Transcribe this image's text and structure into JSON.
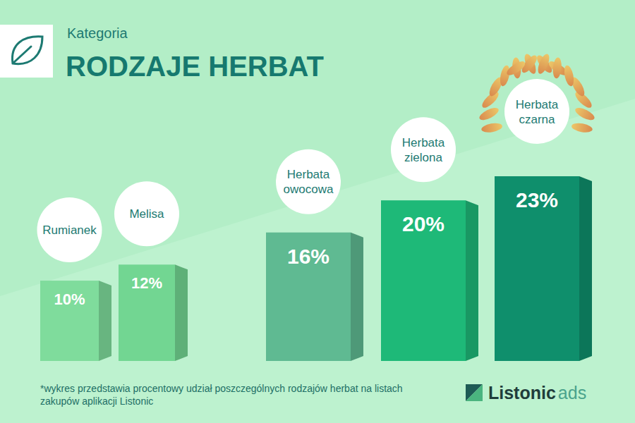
{
  "chart_data": {
    "type": "bar",
    "title": "RODZAJE HERBAT",
    "subtitle": "Kategoria",
    "categories": [
      "Rumianek",
      "Melisa",
      "Herbata owocowa",
      "Herbata zielona",
      "Herbata czarna"
    ],
    "values": [
      10,
      12,
      16,
      20,
      23
    ],
    "value_labels": [
      "10%",
      "12%",
      "16%",
      "20%",
      "23%"
    ],
    "colors": [
      "#7fdc9c",
      "#72d692",
      "#5fba92",
      "#1eb978",
      "#0f8f6c"
    ],
    "data_labels": true,
    "annotations": [
      "*wykres przedstawia procentowy udział poszczególnych rodzajów herbat na listach zakupów aplikacji Listonic"
    ]
  },
  "logo": [
    "Listonic",
    "ads"
  ]
}
